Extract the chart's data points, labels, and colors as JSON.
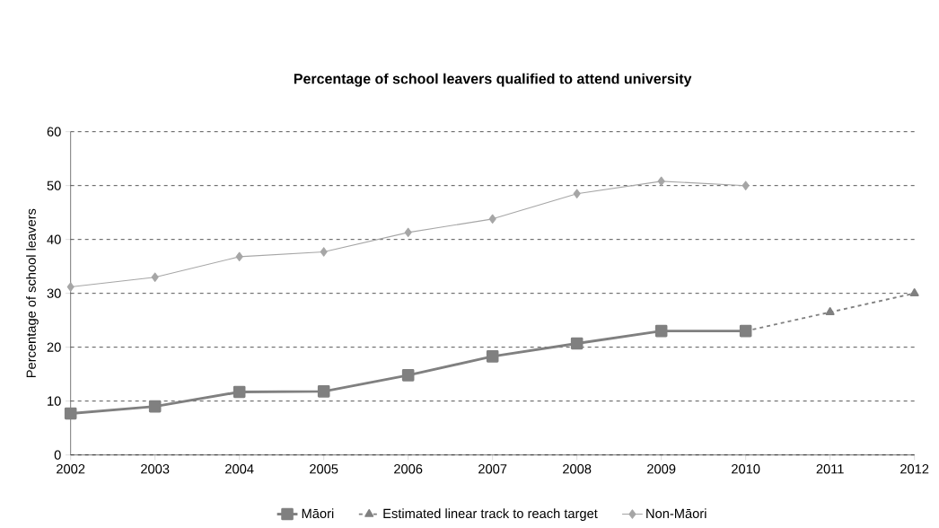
{
  "chart_data": {
    "type": "line",
    "title": "Percentage of school leavers qualified to attend university",
    "ylabel": "Percentage of school leavers",
    "x": [
      2002,
      2003,
      2004,
      2005,
      2006,
      2007,
      2008,
      2009,
      2010
    ],
    "series": [
      {
        "name": "Māori",
        "color": "#808080",
        "values": [
          7.7,
          9,
          11.7,
          11.8,
          14.8,
          18.3,
          20.7,
          23,
          23
        ],
        "marker": "square",
        "line_style": "solid"
      },
      {
        "name": "Estimated linear track to reach target",
        "color": "#808080",
        "x": [
          2010,
          2011,
          2012
        ],
        "values": [
          23,
          26.5,
          30
        ],
        "marker": "triangle",
        "line_style": "dashed"
      },
      {
        "name": "Non-Māori",
        "color": "#a6a6a6",
        "values": [
          31.2,
          33,
          36.8,
          37.7,
          41.3,
          43.8,
          48.5,
          50.8,
          50
        ],
        "marker": "diamond",
        "line_style": "solid"
      }
    ],
    "xlim": [
      2002,
      2012
    ],
    "xticks": [
      2002,
      2003,
      2004,
      2005,
      2006,
      2007,
      2008,
      2009,
      2010,
      2011,
      2012
    ],
    "ylim": [
      0,
      60
    ],
    "yticks": [
      0,
      10,
      20,
      30,
      40,
      50,
      60
    ],
    "grid": "y",
    "legend": "bottom"
  }
}
